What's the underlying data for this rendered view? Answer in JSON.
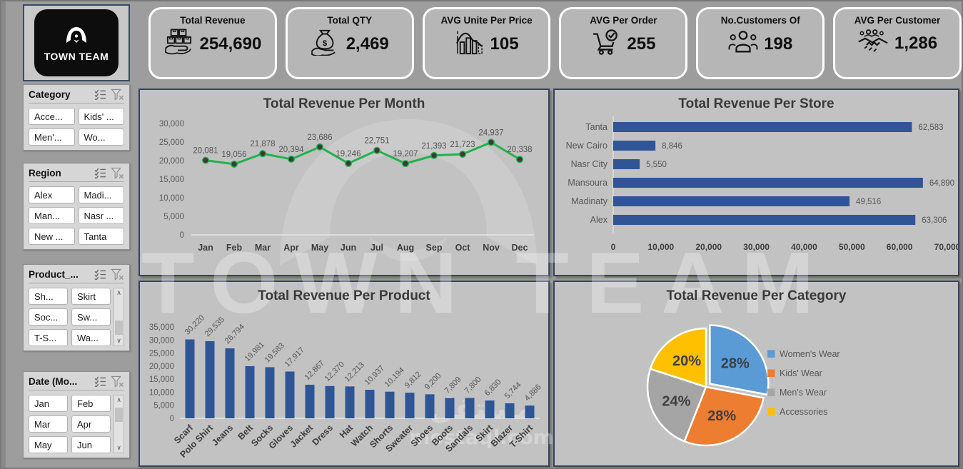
{
  "brand": {
    "name": "TOWN TEAM"
  },
  "watermark": {
    "text": "TOWN TEAM",
    "arabic": "مستقل",
    "site": "mostaql.com"
  },
  "colors": {
    "bar_blue": "#2F5597",
    "line_green": "#23B14D",
    "pie_blue": "#5B9BD5",
    "pie_orange": "#ED7D31",
    "pie_gray": "#A5A5A5",
    "pie_yellow": "#FFC000"
  },
  "kpis": [
    {
      "id": "total-revenue",
      "label": "Total Revenue",
      "value": "254,690",
      "icon": "boxes-hand-icon"
    },
    {
      "id": "total-qty",
      "label": "Total QTY",
      "value": "2,469",
      "icon": "money-bag-icon"
    },
    {
      "id": "avg-unit-per-price",
      "label": "AVG Unite Per Price",
      "value": "105",
      "icon": "histogram-icon"
    },
    {
      "id": "avg-per-order",
      "label": "AVG  Per Order",
      "value": "255",
      "icon": "cart-check-icon"
    },
    {
      "id": "no-customers",
      "label": "No.Customers Of",
      "value": "198",
      "icon": "customers-icon"
    },
    {
      "id": "avg-per-customer",
      "label": "AVG Per Customer",
      "value": "1,286",
      "icon": "handshake-icon"
    }
  ],
  "slicers": [
    {
      "id": "category",
      "title": "Category",
      "items": [
        "Acce...",
        "Kids' ...",
        "Men'...",
        "Wo..."
      ],
      "scrollbar": false
    },
    {
      "id": "region",
      "title": "Region",
      "items": [
        "Alex",
        "Madi...",
        "Man...",
        "Nasr ...",
        "New ...",
        "Tanta"
      ],
      "scrollbar": false
    },
    {
      "id": "product",
      "title": "Product_...",
      "items": [
        "Sh...",
        "Skirt",
        "Soc...",
        "Sw...",
        "T-S...",
        "Wa..."
      ],
      "scrollbar": true,
      "thumb": "middle"
    },
    {
      "id": "date",
      "title": "Date (Mo...",
      "items": [
        "Jan",
        "Feb",
        "Mar",
        "Apr",
        "May",
        "Jun"
      ],
      "scrollbar": true,
      "thumb": "top"
    }
  ],
  "chart_data": [
    {
      "type": "line",
      "title": "Total Revenue Per Month",
      "categories": [
        "Jan",
        "Feb",
        "Mar",
        "Apr",
        "May",
        "Jun",
        "Jul",
        "Aug",
        "Sep",
        "Oct",
        "Nov",
        "Dec"
      ],
      "values": [
        20081,
        19056,
        21878,
        20394,
        23686,
        19246,
        22751,
        19207,
        21393,
        21723,
        24937,
        20338
      ],
      "labels": [
        "20,081",
        "19,056",
        "21,878",
        "20,394",
        "23,686",
        "19,246",
        "22,751",
        "19,207",
        "21,393",
        "21,723",
        "24,937",
        "20,338"
      ],
      "ylim": [
        0,
        30000
      ],
      "yticks": [
        "30,000",
        "25,000",
        "20,000",
        "15,000",
        "10,000",
        "5,000",
        "0"
      ],
      "line_color": "#23B14D",
      "marker_color": "#3A3A3A",
      "grid": false,
      "legend": "none"
    },
    {
      "type": "bar-horizontal",
      "title": "Total Revenue Per Store",
      "categories": [
        "Tanta",
        "New Cairo",
        "Nasr City",
        "Mansoura",
        "Madinaty",
        "Alex"
      ],
      "values": [
        62583,
        8846,
        5550,
        64890,
        49516,
        63306
      ],
      "labels": [
        "62,583",
        "8,846",
        "5,550",
        "64,890",
        "49,516",
        "63,306"
      ],
      "xlim": [
        0,
        70000
      ],
      "xticks": [
        "0",
        "10,000",
        "20,000",
        "30,000",
        "40,000",
        "50,000",
        "60,000",
        "70,000"
      ],
      "bar_color": "#2F5597",
      "grid": false,
      "legend": "none"
    },
    {
      "type": "bar",
      "title": "Total Revenue Per Product",
      "categories": [
        "Scarf",
        "Polo Shirt",
        "Jeans",
        "Belt",
        "Socks",
        "Gloves",
        "Jacket",
        "Dress",
        "Hat",
        "Watch",
        "Shorts",
        "Sweater",
        "Shoes",
        "Boots",
        "Sandals",
        "Skirt",
        "Blazer",
        "T-Shirt"
      ],
      "values": [
        30220,
        29535,
        26794,
        19981,
        19583,
        17917,
        12867,
        12370,
        12213,
        10937,
        10194,
        9812,
        9200,
        7809,
        7800,
        6830,
        5744,
        4886
      ],
      "labels": [
        "30,220",
        "29,535",
        "26,794",
        "19,981",
        "19,583",
        "17,917",
        "12,867",
        "12,370",
        "12,213",
        "10,937",
        "10,194",
        "9,812",
        "9,200",
        "7,809",
        "7,800",
        "6,830",
        "5,744",
        "4,886"
      ],
      "ylim": [
        0,
        35000
      ],
      "yticks": [
        "35,000",
        "30,000",
        "25,000",
        "20,000",
        "15,000",
        "10,000",
        "5,000",
        "0"
      ],
      "bar_color": "#2F5597",
      "grid": false,
      "legend": "none"
    },
    {
      "type": "pie",
      "title": "Total Revenue Per Category",
      "slices": [
        {
          "label": "Women's Wear",
          "pct": 28,
          "display": "28%",
          "color": "#5B9BD5",
          "explode": true
        },
        {
          "label": "Kids' Wear",
          "pct": 28,
          "display": "28%",
          "color": "#ED7D31"
        },
        {
          "label": "Men's Wear",
          "pct": 24,
          "display": "24%",
          "color": "#A5A5A5"
        },
        {
          "label": "Accessories",
          "pct": 20,
          "display": "20%",
          "color": "#FFC000"
        }
      ],
      "legend_position": "right"
    }
  ]
}
